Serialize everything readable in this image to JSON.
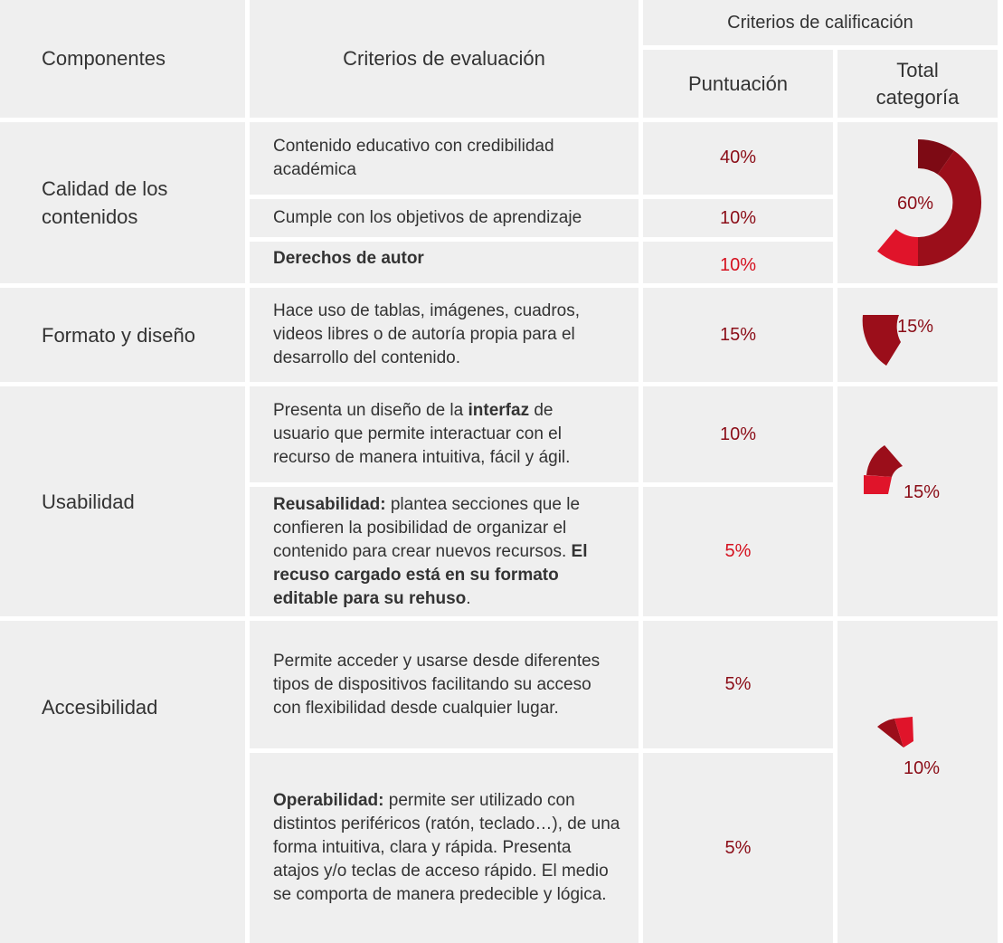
{
  "header": {
    "componentes": "Componentes",
    "criterios_evaluacion": "Criterios de evaluación",
    "criterios_calificacion": "Criterios de calificación",
    "puntuacion": "Puntuación",
    "total_line1": "Total",
    "total_line2": "categoría"
  },
  "colors": {
    "dark": "#7d0a14",
    "mid": "#9b0e1a",
    "bright": "#e0142a",
    "cell_bg": "#efefef"
  },
  "components": [
    {
      "name": "Calidad de los contenidos",
      "name_line1": "Calidad de los",
      "name_line2": "contenidos",
      "total": "60%",
      "criteria": [
        {
          "text": "Contenido educativo con credibilidad académica",
          "score": "40%"
        },
        {
          "text": "Cumple con los objetivos de aprendizaje",
          "score": "10%"
        },
        {
          "text": "Derechos de autor",
          "score": "10%"
        }
      ]
    },
    {
      "name": "Formato y diseño",
      "total": "15%",
      "criteria": [
        {
          "text": "Hace uso de tablas, imágenes, cuadros, videos libres o de autoría propia para el desarrollo del contenido.",
          "score": "15%"
        }
      ]
    },
    {
      "name": "Usabilidad",
      "total": "15%",
      "criteria": [
        {
          "text_pre": "Presenta un diseño de la ",
          "text_bold": "interfaz",
          "text_post": " de usuario que permite interactuar con el recurso de manera intuitiva, fácil y ágil.",
          "score": "10%"
        },
        {
          "text_bold": "Reusabilidad:",
          "text_mid": " plantea secciones que le confieren la posibilidad de organizar el contenido para crear nuevos recursos. ",
          "text_bold2": "El recuso cargado está en su formato editable para su rehuso",
          "text_post": ".",
          "score": "5%"
        }
      ]
    },
    {
      "name": "Accesibilidad",
      "total": "10%",
      "criteria": [
        {
          "text": "Permite acceder y usarse desde diferentes tipos de dispositivos facilitando su acceso con flexibilidad desde cualquier lugar.",
          "score": "5%"
        },
        {
          "text_bold": "Operabilidad:",
          "text_post": " permite ser utilizado con distintos periféricos (ratón, teclado…), de una forma intuitiva, clara y rápida. Presenta atajos y/o teclas de acceso rápido. El medio se comporta de manera predecible y lógica.",
          "score": "5%"
        }
      ]
    }
  ]
}
